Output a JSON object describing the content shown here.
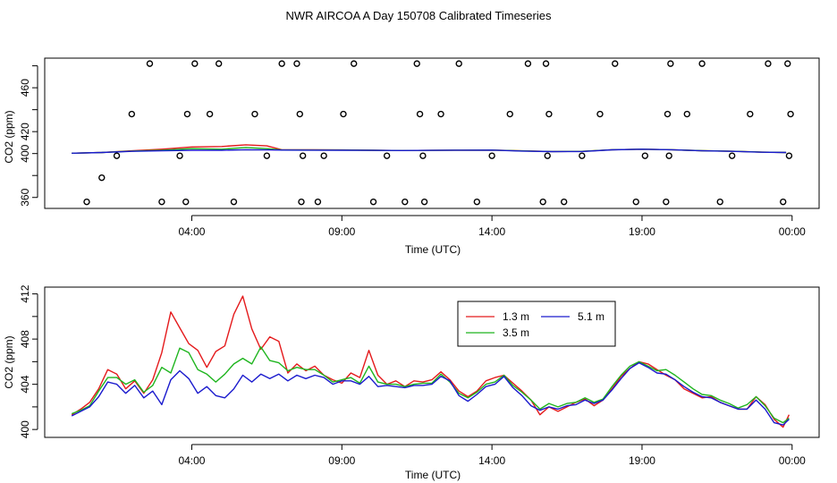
{
  "title": "NWR AIRCOA A  Day 150708  Calibrated Timeseries",
  "colors": {
    "1.3 m": "#e41a1c",
    "3.5 m": "#1fb51f",
    "5.1 m": "#1a1acd"
  },
  "chart_data": [
    {
      "type": "line",
      "panel": "top",
      "xlabel": "Time (UTC)",
      "ylabel": "CO2 (ppm)",
      "xticks": [
        "04:00",
        "09:00",
        "14:00",
        "19:00",
        "00:00"
      ],
      "xtick_hours": [
        4,
        9,
        14,
        19,
        24
      ],
      "yticks": [
        360,
        380,
        400,
        420,
        440,
        460,
        480
      ],
      "ytick_labels": [
        "360",
        "",
        "400",
        "420",
        "",
        "460",
        ""
      ],
      "xlim": [
        -0.9,
        24.9
      ],
      "ylim": [
        350,
        487
      ],
      "series": [
        {
          "name": "1.3 m",
          "hours": [
            0,
            1,
            2,
            3,
            4,
            5,
            5.8,
            6.5,
            7,
            8,
            9,
            10,
            11,
            12,
            13,
            14,
            15,
            16,
            17,
            18,
            19,
            20,
            21,
            22,
            23,
            23.8
          ],
          "values": [
            400.3,
            401,
            402.5,
            404,
            406,
            406.4,
            408,
            407,
            403.5,
            403.4,
            403.3,
            403,
            402.8,
            402.9,
            403.1,
            403.2,
            402.5,
            401.9,
            402,
            403.5,
            404,
            403.5,
            402.6,
            402.1,
            401.3,
            401
          ]
        },
        {
          "name": "3.5 m",
          "hours": [
            0,
            1,
            2,
            3,
            4,
            5,
            5.8,
            6.5,
            7,
            8,
            9,
            10,
            11,
            12,
            13,
            14,
            15,
            16,
            17,
            18,
            19,
            20,
            21,
            22,
            23,
            23.8
          ],
          "values": [
            400.3,
            401,
            402.3,
            403,
            404.5,
            404,
            405.5,
            404.5,
            403.3,
            403.2,
            403.2,
            403,
            402.8,
            402.9,
            403.1,
            403.2,
            402.4,
            401.9,
            402,
            403.5,
            404,
            403.5,
            402.6,
            402.1,
            401.3,
            401
          ]
        },
        {
          "name": "5.1 m",
          "hours": [
            0,
            1,
            2,
            3,
            4,
            5,
            5.8,
            6.5,
            7,
            8,
            9,
            10,
            11,
            12,
            13,
            14,
            15,
            16,
            17,
            18,
            19,
            20,
            21,
            22,
            23,
            23.8
          ],
          "values": [
            400.3,
            401,
            402,
            402.5,
            403,
            403,
            403.5,
            403.3,
            403.2,
            403.1,
            403,
            402.9,
            402.8,
            402.9,
            403.1,
            403.2,
            402.3,
            401.8,
            401.9,
            403.4,
            404,
            403.5,
            402.5,
            402,
            401.2,
            401
          ]
        }
      ],
      "calibration_points": {
        "hours": [
          0.5,
          1,
          1.5,
          2,
          2.6,
          3,
          3.6,
          3.8,
          3.85,
          4.1,
          4.6,
          4.9,
          5.4,
          6.1,
          6.5,
          7,
          7.5,
          7.6,
          7.65,
          7.7,
          8.2,
          8.4,
          9.05,
          9.4,
          10.05,
          10.5,
          11.1,
          11.5,
          11.6,
          11.7,
          11.75,
          12.3,
          12.9,
          13.5,
          14,
          14.6,
          15.2,
          15.7,
          15.8,
          15.85,
          15.9,
          16.4,
          17,
          17.6,
          18.1,
          18.8,
          19.1,
          19.8,
          19.85,
          19.9,
          19.95,
          20.5,
          21,
          21.6,
          22,
          22.6,
          23.2,
          23.7,
          23.85,
          23.9,
          23.95
        ],
        "values": [
          356,
          378,
          398,
          436,
          482,
          356,
          398,
          356,
          436,
          482,
          436,
          482,
          356,
          436,
          398,
          482,
          482,
          436,
          356,
          398,
          356,
          398,
          436,
          482,
          356,
          398,
          356,
          482,
          436,
          398,
          356,
          436,
          482,
          356,
          398,
          436,
          482,
          356,
          482,
          398,
          436,
          356,
          398,
          436,
          482,
          356,
          398,
          356,
          436,
          398,
          482,
          436,
          482,
          356,
          398,
          436,
          482,
          356,
          482,
          398,
          436
        ]
      }
    },
    {
      "type": "line",
      "panel": "bottom",
      "xlabel": "Time (UTC)",
      "ylabel": "CO2 (ppm)",
      "xticks": [
        "04:00",
        "09:00",
        "14:00",
        "19:00",
        "00:00"
      ],
      "xtick_hours": [
        4,
        9,
        14,
        19,
        24
      ],
      "yticks": [
        400,
        402,
        404,
        406,
        408,
        410,
        412
      ],
      "ytick_labels": [
        "400",
        "",
        "404",
        "",
        "408",
        "",
        "412"
      ],
      "xlim": [
        -0.9,
        24.9
      ],
      "ylim": [
        399.3,
        412.6
      ],
      "legend": {
        "entries": [
          "1.3 m",
          "5.1 m",
          "3.5 m"
        ],
        "placement": "top-right"
      },
      "series": [
        {
          "name": "1.3 m",
          "hours": [
            0,
            0.3,
            0.6,
            0.9,
            1.2,
            1.5,
            1.8,
            2.1,
            2.4,
            2.7,
            3.0,
            3.3,
            3.6,
            3.9,
            4.2,
            4.5,
            4.8,
            5.1,
            5.4,
            5.7,
            6.0,
            6.3,
            6.6,
            6.9,
            7.2,
            7.5,
            7.8,
            8.1,
            8.4,
            8.7,
            9.0,
            9.3,
            9.6,
            9.9,
            10.2,
            10.5,
            10.8,
            11.1,
            11.4,
            11.7,
            12.0,
            12.3,
            12.6,
            12.9,
            13.2,
            13.5,
            13.8,
            14.1,
            14.4,
            14.7,
            15.0,
            15.3,
            15.6,
            15.9,
            16.2,
            16.5,
            16.8,
            17.1,
            17.4,
            17.7,
            18.0,
            18.3,
            18.6,
            18.9,
            19.2,
            19.5,
            19.8,
            20.1,
            20.4,
            20.7,
            21.0,
            21.3,
            21.6,
            21.9,
            22.2,
            22.5,
            22.8,
            23.1,
            23.4,
            23.7,
            23.9
          ],
          "values": [
            401.3,
            401.8,
            402.4,
            403.6,
            405.3,
            404.9,
            403.6,
            404.3,
            403.2,
            404.4,
            406.8,
            410.4,
            409.0,
            407.6,
            407.0,
            405.5,
            406.9,
            407.4,
            410.2,
            411.8,
            408.9,
            407.1,
            408.2,
            407.8,
            405.0,
            405.8,
            405.2,
            405.6,
            404.8,
            404.4,
            404.1,
            405.0,
            404.6,
            407.0,
            404.8,
            404.0,
            404.3,
            403.8,
            404.3,
            404.2,
            404.4,
            405.1,
            404.4,
            403.4,
            402.9,
            403.4,
            404.3,
            404.6,
            404.8,
            404.1,
            403.4,
            402.6,
            401.3,
            402.0,
            401.6,
            402.0,
            402.4,
            402.7,
            402.1,
            402.6,
            403.6,
            404.7,
            405.4,
            406.0,
            405.8,
            405.3,
            404.8,
            404.4,
            403.6,
            403.2,
            402.8,
            402.9,
            402.4,
            402.1,
            401.8,
            401.8,
            402.9,
            402.2,
            400.9,
            400.2,
            401.3
          ]
        },
        {
          "name": "3.5 m",
          "hours": [
            0,
            0.3,
            0.6,
            0.9,
            1.2,
            1.5,
            1.8,
            2.1,
            2.4,
            2.7,
            3.0,
            3.3,
            3.6,
            3.9,
            4.2,
            4.5,
            4.8,
            5.1,
            5.4,
            5.7,
            6.0,
            6.3,
            6.6,
            6.9,
            7.2,
            7.5,
            7.8,
            8.1,
            8.4,
            8.7,
            9.0,
            9.3,
            9.6,
            9.9,
            10.2,
            10.5,
            10.8,
            11.1,
            11.4,
            11.7,
            12.0,
            12.3,
            12.6,
            12.9,
            13.2,
            13.5,
            13.8,
            14.1,
            14.4,
            14.7,
            15.0,
            15.3,
            15.6,
            15.9,
            16.2,
            16.5,
            16.8,
            17.1,
            17.4,
            17.7,
            18.0,
            18.3,
            18.6,
            18.9,
            19.2,
            19.5,
            19.8,
            20.1,
            20.4,
            20.7,
            21.0,
            21.3,
            21.6,
            21.9,
            22.2,
            22.5,
            22.8,
            23.1,
            23.4,
            23.7,
            23.9
          ],
          "values": [
            401.4,
            401.7,
            402.1,
            403.4,
            404.6,
            404.6,
            404.0,
            404.4,
            403.3,
            403.9,
            405.5,
            405.0,
            407.2,
            406.8,
            405.3,
            404.9,
            404.2,
            404.9,
            405.8,
            406.3,
            405.8,
            407.3,
            406.1,
            405.9,
            405.2,
            405.5,
            405.3,
            405.3,
            404.8,
            404.2,
            404.4,
            404.6,
            404.1,
            405.6,
            404.2,
            404.0,
            404.0,
            403.8,
            404.0,
            404.1,
            404.1,
            404.9,
            404.2,
            403.2,
            402.8,
            403.3,
            404.0,
            404.2,
            404.8,
            403.9,
            403.3,
            402.6,
            401.8,
            402.3,
            402.0,
            402.3,
            402.4,
            402.8,
            402.4,
            402.7,
            403.8,
            404.8,
            405.6,
            406.0,
            405.6,
            405.2,
            405.3,
            404.8,
            404.2,
            403.6,
            403.1,
            403.0,
            402.6,
            402.3,
            401.9,
            402.2,
            402.9,
            402.1,
            401.0,
            400.6,
            401.0
          ]
        },
        {
          "name": "5.1 m",
          "hours": [
            0,
            0.3,
            0.6,
            0.9,
            1.2,
            1.5,
            1.8,
            2.1,
            2.4,
            2.7,
            3.0,
            3.3,
            3.6,
            3.9,
            4.2,
            4.5,
            4.8,
            5.1,
            5.4,
            5.7,
            6.0,
            6.3,
            6.6,
            6.9,
            7.2,
            7.5,
            7.8,
            8.1,
            8.4,
            8.7,
            9.0,
            9.3,
            9.6,
            9.9,
            10.2,
            10.5,
            10.8,
            11.1,
            11.4,
            11.7,
            12.0,
            12.3,
            12.6,
            12.9,
            13.2,
            13.5,
            13.8,
            14.1,
            14.4,
            14.7,
            15.0,
            15.3,
            15.6,
            15.9,
            16.2,
            16.5,
            16.8,
            17.1,
            17.4,
            17.7,
            18.0,
            18.3,
            18.6,
            18.9,
            19.2,
            19.5,
            19.8,
            20.1,
            20.4,
            20.7,
            21.0,
            21.3,
            21.6,
            21.9,
            22.2,
            22.5,
            22.8,
            23.1,
            23.4,
            23.7,
            23.9
          ],
          "values": [
            401.2,
            401.6,
            402.0,
            402.9,
            404.2,
            404.0,
            403.2,
            403.9,
            402.8,
            403.4,
            402.2,
            404.4,
            405.2,
            404.5,
            403.2,
            403.8,
            403.0,
            402.8,
            403.6,
            404.8,
            404.2,
            404.9,
            404.5,
            404.9,
            404.3,
            404.8,
            404.5,
            404.8,
            404.6,
            404.0,
            404.3,
            404.3,
            404.0,
            404.7,
            403.8,
            403.9,
            403.8,
            403.7,
            403.9,
            403.9,
            404.0,
            404.7,
            404.3,
            403.0,
            402.5,
            403.1,
            403.8,
            404.0,
            404.7,
            403.7,
            403.0,
            402.1,
            401.7,
            402.0,
            401.8,
            402.1,
            402.2,
            402.6,
            402.3,
            402.6,
            403.5,
            404.5,
            405.4,
            405.9,
            405.5,
            405.0,
            404.9,
            404.4,
            403.8,
            403.3,
            402.9,
            402.8,
            402.4,
            402.1,
            401.8,
            401.8,
            402.6,
            401.8,
            400.6,
            400.4,
            400.9
          ]
        }
      ]
    }
  ]
}
